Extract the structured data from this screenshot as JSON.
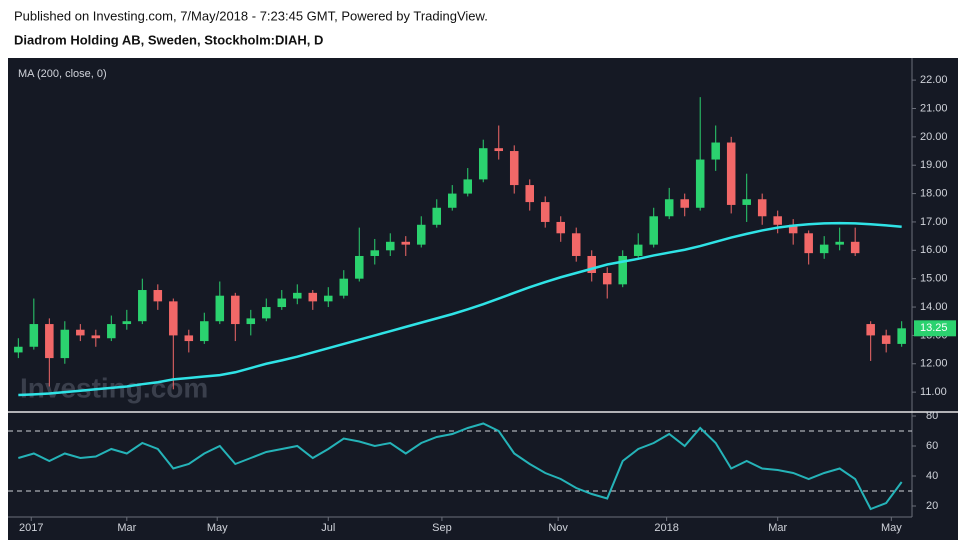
{
  "header": {
    "published": "Published on Investing.com, 7/May/2018 - 7:23:45 GMT, Powered by TradingView.",
    "symbol": "Diadrom Holding AB, Sweden, Stockholm:DIAH, D"
  },
  "chart_data": [
    {
      "type": "candlestick",
      "indicator_label": "MA (200, close, 0)",
      "watermark": "Investing.com",
      "x": [
        0,
        6,
        12,
        18,
        24,
        30,
        36,
        42,
        48,
        54,
        60,
        66,
        72,
        78,
        84,
        90,
        96,
        102,
        108,
        114,
        120,
        126,
        132,
        138,
        144,
        150,
        156,
        162,
        168,
        174,
        180,
        186,
        192,
        198,
        204,
        210,
        216,
        222,
        228,
        234,
        240,
        246,
        252,
        258,
        264,
        270,
        276,
        282,
        288,
        294,
        300,
        306,
        312,
        318,
        324,
        330,
        336,
        342
      ],
      "open": [
        12.4,
        12.6,
        13.4,
        12.2,
        13.2,
        13.0,
        12.9,
        13.4,
        13.5,
        14.6,
        14.2,
        13.0,
        12.8,
        13.5,
        14.4,
        13.4,
        13.6,
        14.0,
        14.3,
        14.5,
        14.2,
        14.4,
        15.0,
        15.8,
        16.0,
        16.3,
        16.2,
        16.9,
        17.5,
        18.0,
        18.5,
        19.6,
        19.5,
        18.3,
        17.7,
        17.0,
        16.6,
        15.8,
        15.2,
        14.8,
        15.8,
        16.2,
        17.2,
        17.8,
        17.5,
        19.2,
        19.8,
        17.6,
        17.8,
        17.2,
        16.9,
        16.6,
        15.9,
        16.2,
        16.3,
        13.4,
        13.0,
        12.7
      ],
      "high": [
        12.9,
        14.3,
        13.6,
        13.5,
        13.4,
        13.2,
        13.7,
        13.9,
        15.0,
        14.8,
        14.3,
        13.2,
        13.8,
        14.9,
        14.5,
        13.9,
        14.3,
        14.6,
        14.8,
        14.6,
        14.7,
        15.3,
        16.8,
        16.4,
        16.6,
        16.5,
        17.2,
        17.8,
        18.3,
        18.9,
        19.9,
        20.4,
        19.7,
        18.5,
        17.9,
        17.2,
        16.8,
        16.0,
        15.4,
        16.0,
        16.6,
        17.5,
        18.2,
        18.0,
        21.4,
        20.4,
        20.0,
        18.7,
        18.0,
        17.4,
        17.1,
        16.7,
        16.5,
        16.8,
        16.8,
        13.5,
        13.2,
        13.5
      ],
      "low": [
        12.2,
        12.5,
        11.2,
        12.0,
        12.8,
        12.6,
        12.8,
        13.2,
        13.4,
        13.9,
        11.1,
        12.4,
        12.7,
        13.4,
        12.8,
        13.0,
        13.5,
        13.9,
        14.1,
        13.9,
        14.0,
        14.3,
        14.9,
        15.5,
        15.8,
        15.8,
        16.1,
        16.8,
        17.4,
        17.9,
        18.4,
        19.2,
        18.0,
        17.4,
        16.8,
        16.3,
        15.6,
        14.9,
        14.3,
        14.7,
        15.7,
        16.1,
        17.1,
        17.2,
        17.4,
        18.8,
        17.3,
        17.0,
        16.9,
        16.6,
        16.2,
        15.5,
        15.7,
        16.0,
        15.8,
        12.1,
        12.4,
        12.6
      ],
      "close": [
        12.6,
        13.4,
        12.2,
        13.2,
        13.0,
        12.9,
        13.4,
        13.5,
        14.6,
        14.2,
        13.0,
        12.8,
        13.5,
        14.4,
        13.4,
        13.6,
        14.0,
        14.3,
        14.5,
        14.2,
        14.4,
        15.0,
        15.8,
        16.0,
        16.3,
        16.2,
        16.9,
        17.5,
        18.0,
        18.5,
        19.6,
        19.5,
        18.3,
        17.7,
        17.0,
        16.6,
        15.8,
        15.2,
        14.8,
        15.8,
        16.2,
        17.2,
        17.8,
        17.5,
        19.2,
        19.8,
        17.6,
        17.8,
        17.2,
        16.9,
        16.6,
        15.9,
        16.2,
        16.3,
        15.9,
        13.0,
        12.7,
        13.25
      ],
      "up_color": "#2bd26f",
      "down_color": "#f26868",
      "ma": {
        "color": "#2fe3e6",
        "values": [
          10.9,
          10.92,
          10.95,
          11.0,
          11.05,
          11.1,
          11.15,
          11.2,
          11.28,
          11.35,
          11.45,
          11.5,
          11.55,
          11.6,
          11.7,
          11.85,
          12.0,
          12.12,
          12.25,
          12.4,
          12.55,
          12.7,
          12.85,
          13.0,
          13.15,
          13.3,
          13.45,
          13.6,
          13.75,
          13.92,
          14.1,
          14.3,
          14.5,
          14.7,
          14.88,
          15.05,
          15.2,
          15.35,
          15.5,
          15.6,
          15.7,
          15.82,
          15.92,
          16.02,
          16.15,
          16.3,
          16.45,
          16.58,
          16.7,
          16.8,
          16.87,
          16.92,
          16.95,
          16.96,
          16.95,
          16.92,
          16.88,
          16.83
        ]
      },
      "last_price": {
        "value": 13.25,
        "label": "13.25"
      },
      "xlim": [
        -4,
        346
      ],
      "ylim": [
        10.37,
        22.78
      ],
      "yticks": [
        {
          "value": 11,
          "label": "11.00"
        },
        {
          "value": 12,
          "label": "12.00"
        },
        {
          "value": 13,
          "label": "13.00"
        },
        {
          "value": 14,
          "label": "14.00"
        },
        {
          "value": 15,
          "label": "15.00"
        },
        {
          "value": 16,
          "label": "16.00"
        },
        {
          "value": 17,
          "label": "17.00"
        },
        {
          "value": 18,
          "label": "18.00"
        },
        {
          "value": 19,
          "label": "19.00"
        },
        {
          "value": 20,
          "label": "20.00"
        },
        {
          "value": 21,
          "label": "21.00"
        },
        {
          "value": 22,
          "label": "22.00"
        }
      ]
    },
    {
      "type": "line",
      "x": [
        0,
        6,
        12,
        18,
        24,
        30,
        36,
        42,
        48,
        54,
        60,
        66,
        72,
        78,
        84,
        90,
        96,
        102,
        108,
        114,
        120,
        126,
        132,
        138,
        144,
        150,
        156,
        162,
        168,
        174,
        180,
        186,
        192,
        198,
        204,
        210,
        216,
        222,
        228,
        234,
        240,
        246,
        252,
        258,
        264,
        270,
        276,
        282,
        288,
        294,
        300,
        306,
        312,
        318,
        324,
        330,
        336,
        342
      ],
      "series": [
        {
          "color": "#25b3b8",
          "values": [
            52,
            55,
            50,
            55,
            52,
            53,
            58,
            55,
            62,
            58,
            45,
            48,
            55,
            60,
            48,
            52,
            56,
            58,
            60,
            52,
            58,
            65,
            63,
            60,
            62,
            55,
            62,
            66,
            68,
            72,
            75,
            70,
            55,
            48,
            42,
            38,
            32,
            28,
            25,
            50,
            58,
            62,
            68,
            60,
            72,
            62,
            45,
            50,
            45,
            44,
            42,
            38,
            42,
            45,
            38,
            18,
            22,
            36
          ]
        }
      ],
      "levels": [
        30,
        70
      ],
      "xlim": [
        -4,
        346
      ],
      "ylim": [
        14,
        82
      ],
      "yticks": [
        20,
        40,
        60,
        80
      ],
      "xticks": [
        {
          "value": 5,
          "label": "2017"
        },
        {
          "value": 42,
          "label": "Mar"
        },
        {
          "value": 77,
          "label": "May"
        },
        {
          "value": 120,
          "label": "Jul"
        },
        {
          "value": 164,
          "label": "Sep"
        },
        {
          "value": 209,
          "label": "Nov"
        },
        {
          "value": 251,
          "label": "2018"
        },
        {
          "value": 294,
          "label": "Mar"
        },
        {
          "value": 338,
          "label": "May"
        }
      ]
    }
  ]
}
